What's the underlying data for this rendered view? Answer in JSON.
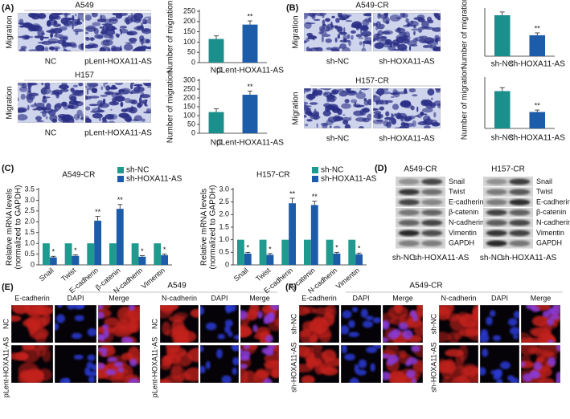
{
  "figure": {
    "A": {
      "label": "(A)",
      "images": [
        {
          "title": "A549",
          "ylabel": "Migration",
          "columns": [
            "NC",
            "pLent-HOXA11-AS"
          ]
        },
        {
          "title": "H157",
          "ylabel": "Migration",
          "columns": [
            "NC",
            "pLent-HOXA11-AS"
          ]
        }
      ]
    },
    "B": {
      "label": "(B)",
      "images": [
        {
          "title": "A549-CR",
          "ylabel": "Migration",
          "columns": [
            "sh-NC",
            "sh-HOXA11-AS"
          ]
        },
        {
          "title": "H157-CR",
          "ylabel": "Migration",
          "columns": [
            "sh-NC",
            "sh-HOXA11-AS"
          ]
        }
      ]
    },
    "C": {
      "label": "(C)"
    },
    "D": {
      "label": "(D)",
      "blots": [
        {
          "title": "A549-CR",
          "rows": [
            "Snail",
            "Twist",
            "E-cadherin",
            "β-catenin",
            "N-cadherin",
            "Vimentin",
            "GAPDH"
          ],
          "columns": [
            "sh-NC",
            "sh-HOXA11-AS"
          ]
        },
        {
          "title": "H157-CR",
          "rows": [
            "Snail",
            "Twist",
            "E-cadherin",
            "β-catenin",
            "N-cadherin",
            "Vimentin",
            "GAPDH"
          ],
          "columns": [
            "sh-NC",
            "sh-HOXA11-AS"
          ]
        }
      ]
    },
    "E": {
      "label": "(E)",
      "title": "A549",
      "groups": [
        {
          "columns": [
            "E-cadherin",
            "DAPI",
            "Merge"
          ],
          "rows": [
            "NC",
            "pLent-HOXA11-AS"
          ]
        },
        {
          "columns": [
            "N-cadherin",
            "DAPI",
            "Merge"
          ],
          "rows": [
            "NC",
            "pLent-HOXA11-AS"
          ]
        }
      ]
    },
    "F": {
      "label": "(F)",
      "title": "A549-CR",
      "groups": [
        {
          "columns": [
            "E-cadherin",
            "DAPI",
            "Merge"
          ],
          "rows": [
            "sh-NC",
            "sh-HOXA11-AS"
          ]
        },
        {
          "columns": [
            "N-cadherin",
            "DAPI",
            "Merge"
          ],
          "rows": [
            "sh-NC",
            "sh-HOXA11-AS"
          ]
        }
      ]
    }
  },
  "chart_data": [
    {
      "type": "bar",
      "ylabel": "Number of migration",
      "categories": [
        "NC",
        "pLent-HOXA11-AS"
      ],
      "values": [
        115,
        185
      ],
      "errors": [
        15,
        18
      ],
      "annotations": [
        null,
        "**"
      ],
      "colors": [
        "#1a8f8c",
        "#1d5ca8"
      ],
      "ylim": [
        0,
        250
      ],
      "yticks": [
        0,
        50,
        100,
        150,
        200,
        250
      ]
    },
    {
      "type": "bar",
      "ylabel": "Number of migration",
      "categories": [
        "NC",
        "pLent-HOXA11-AS"
      ],
      "values": [
        120,
        218
      ],
      "errors": [
        18,
        20
      ],
      "annotations": [
        null,
        "**"
      ],
      "colors": [
        "#1a8f8c",
        "#1d5ca8"
      ],
      "ylim": [
        0,
        300
      ],
      "yticks": [
        0,
        50,
        100,
        150,
        200,
        250,
        300
      ]
    },
    {
      "type": "bar",
      "ylabel": "Number of migration",
      "categories": [
        "sh-NC",
        "sh-HOXA11-AS"
      ],
      "values": [
        0.88,
        0.45
      ],
      "errors": [
        0.07,
        0.05
      ],
      "annotations": [
        null,
        "**"
      ],
      "colors": [
        "#1a8f8c",
        "#1d5ca8"
      ],
      "ylim": [
        0,
        1
      ]
    },
    {
      "type": "bar",
      "ylabel": "Number of migration",
      "categories": [
        "sh-NC",
        "sh-HOXA11-AS"
      ],
      "values": [
        0.75,
        0.33
      ],
      "errors": [
        0.07,
        0.04
      ],
      "annotations": [
        null,
        "**"
      ],
      "colors": [
        "#1a8f8c",
        "#1d5ca8"
      ],
      "ylim": [
        0,
        1
      ]
    },
    {
      "type": "bar",
      "title": "A549-CR",
      "ylabel": [
        "Relative mRNA levels",
        "(normalized to GAPDH)"
      ],
      "categories": [
        "Snail",
        "Twist",
        "E-cadherin",
        "β-catenin",
        "N-cadherin",
        "Vimentin"
      ],
      "series": [
        {
          "name": "sh-NC",
          "color": "#1f9a8f",
          "values": [
            1,
            1,
            1,
            1,
            1,
            1
          ]
        },
        {
          "name": "sh-HOXA11-AS",
          "color": "#1d5ca8",
          "values": [
            0.35,
            0.42,
            2.05,
            2.6,
            0.38,
            0.45
          ],
          "errors": [
            0.05,
            0.05,
            0.2,
            0.2,
            0.05,
            0.05
          ],
          "annotations": [
            "*",
            "*",
            "**",
            "**",
            "*",
            "*"
          ]
        }
      ],
      "legend": "upper right",
      "ylim": [
        0,
        3.5
      ],
      "yticks": [
        0,
        0.5,
        {
          "value": 1,
          "label": "1.0"
        },
        1.5,
        {
          "value": 2,
          "label": "2.0"
        },
        2.5,
        {
          "value": 3,
          "label": "3.0"
        },
        3.5
      ]
    },
    {
      "type": "bar",
      "title": "H157-CR",
      "ylabel": [
        "Relative mRNA levels",
        "(normalized to GAPDH)"
      ],
      "categories": [
        "Snail",
        "Twist",
        "E-cadherin",
        "β-catenin",
        "N-cadherin",
        "Vimentin"
      ],
      "series": [
        {
          "name": "sh-NC",
          "color": "#1f9a8f",
          "values": [
            1,
            1,
            1,
            1,
            1,
            1
          ]
        },
        {
          "name": "sh-HOXA11-AS",
          "color": "#1d5ca8",
          "values": [
            0.45,
            0.4,
            2.45,
            2.38,
            0.45,
            0.42
          ],
          "errors": [
            0.05,
            0.05,
            0.2,
            0.15,
            0.05,
            0.05
          ],
          "annotations": [
            "*",
            "*",
            "**",
            "**",
            "*",
            "*"
          ]
        }
      ],
      "legend": "upper right",
      "ylim": [
        0,
        3
      ],
      "yticks": [
        0,
        0.5,
        {
          "value": 1,
          "label": "1.0"
        },
        1.5,
        {
          "value": 2,
          "label": "2.0"
        },
        2.5,
        {
          "value": 3,
          "label": "3.0"
        }
      ]
    }
  ]
}
